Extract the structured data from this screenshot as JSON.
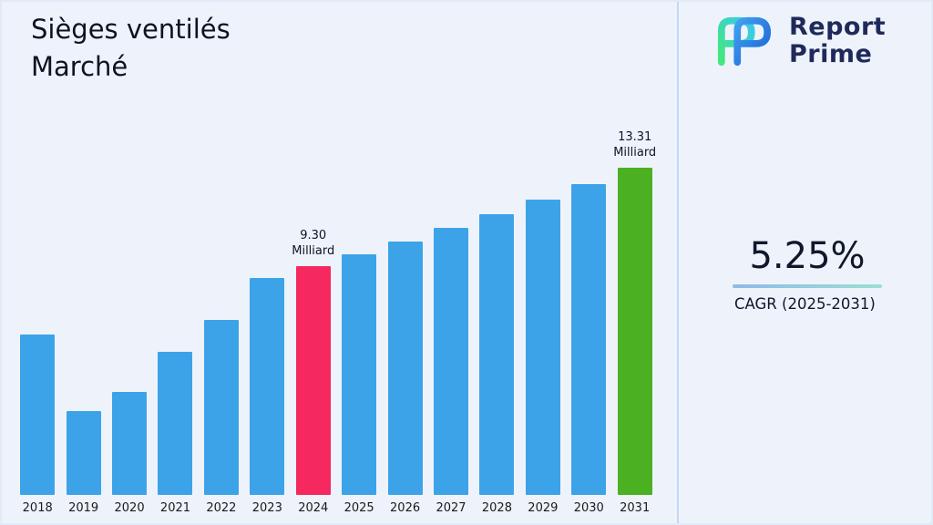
{
  "page": {
    "title_line1": "Sièges ventilés",
    "title_line2": "Marché"
  },
  "logo": {
    "line1": "Report",
    "line2": "Prime"
  },
  "stats": {
    "cagr_value": "5.25%",
    "cagr_label": "CAGR (2025-2031)"
  },
  "chart_data": {
    "type": "bar",
    "title": "Sièges ventilés Marché",
    "xlabel": "",
    "ylabel": "",
    "unit": "Milliard",
    "categories": [
      "2018",
      "2019",
      "2020",
      "2021",
      "2022",
      "2023",
      "2024",
      "2025",
      "2026",
      "2027",
      "2028",
      "2029",
      "2030",
      "2031"
    ],
    "values": [
      6.5,
      3.4,
      4.2,
      5.8,
      7.1,
      8.8,
      9.3,
      9.79,
      10.3,
      10.84,
      11.41,
      12.01,
      12.64,
      13.31
    ],
    "ylim": [
      0,
      14
    ],
    "grid": false,
    "legend": "none",
    "annotations": [
      {
        "year": "2024",
        "lines": [
          "9.30",
          "Milliard"
        ]
      },
      {
        "year": "2031",
        "lines": [
          "13.31",
          "Milliard"
        ]
      }
    ],
    "colors": {
      "default": "#3da3e8",
      "2024": "#f5285f",
      "2031": "#4cb122",
      "background": "#eef3fb",
      "divider": "#c3d8f2",
      "logo_navy": "#1f2a5a"
    }
  }
}
